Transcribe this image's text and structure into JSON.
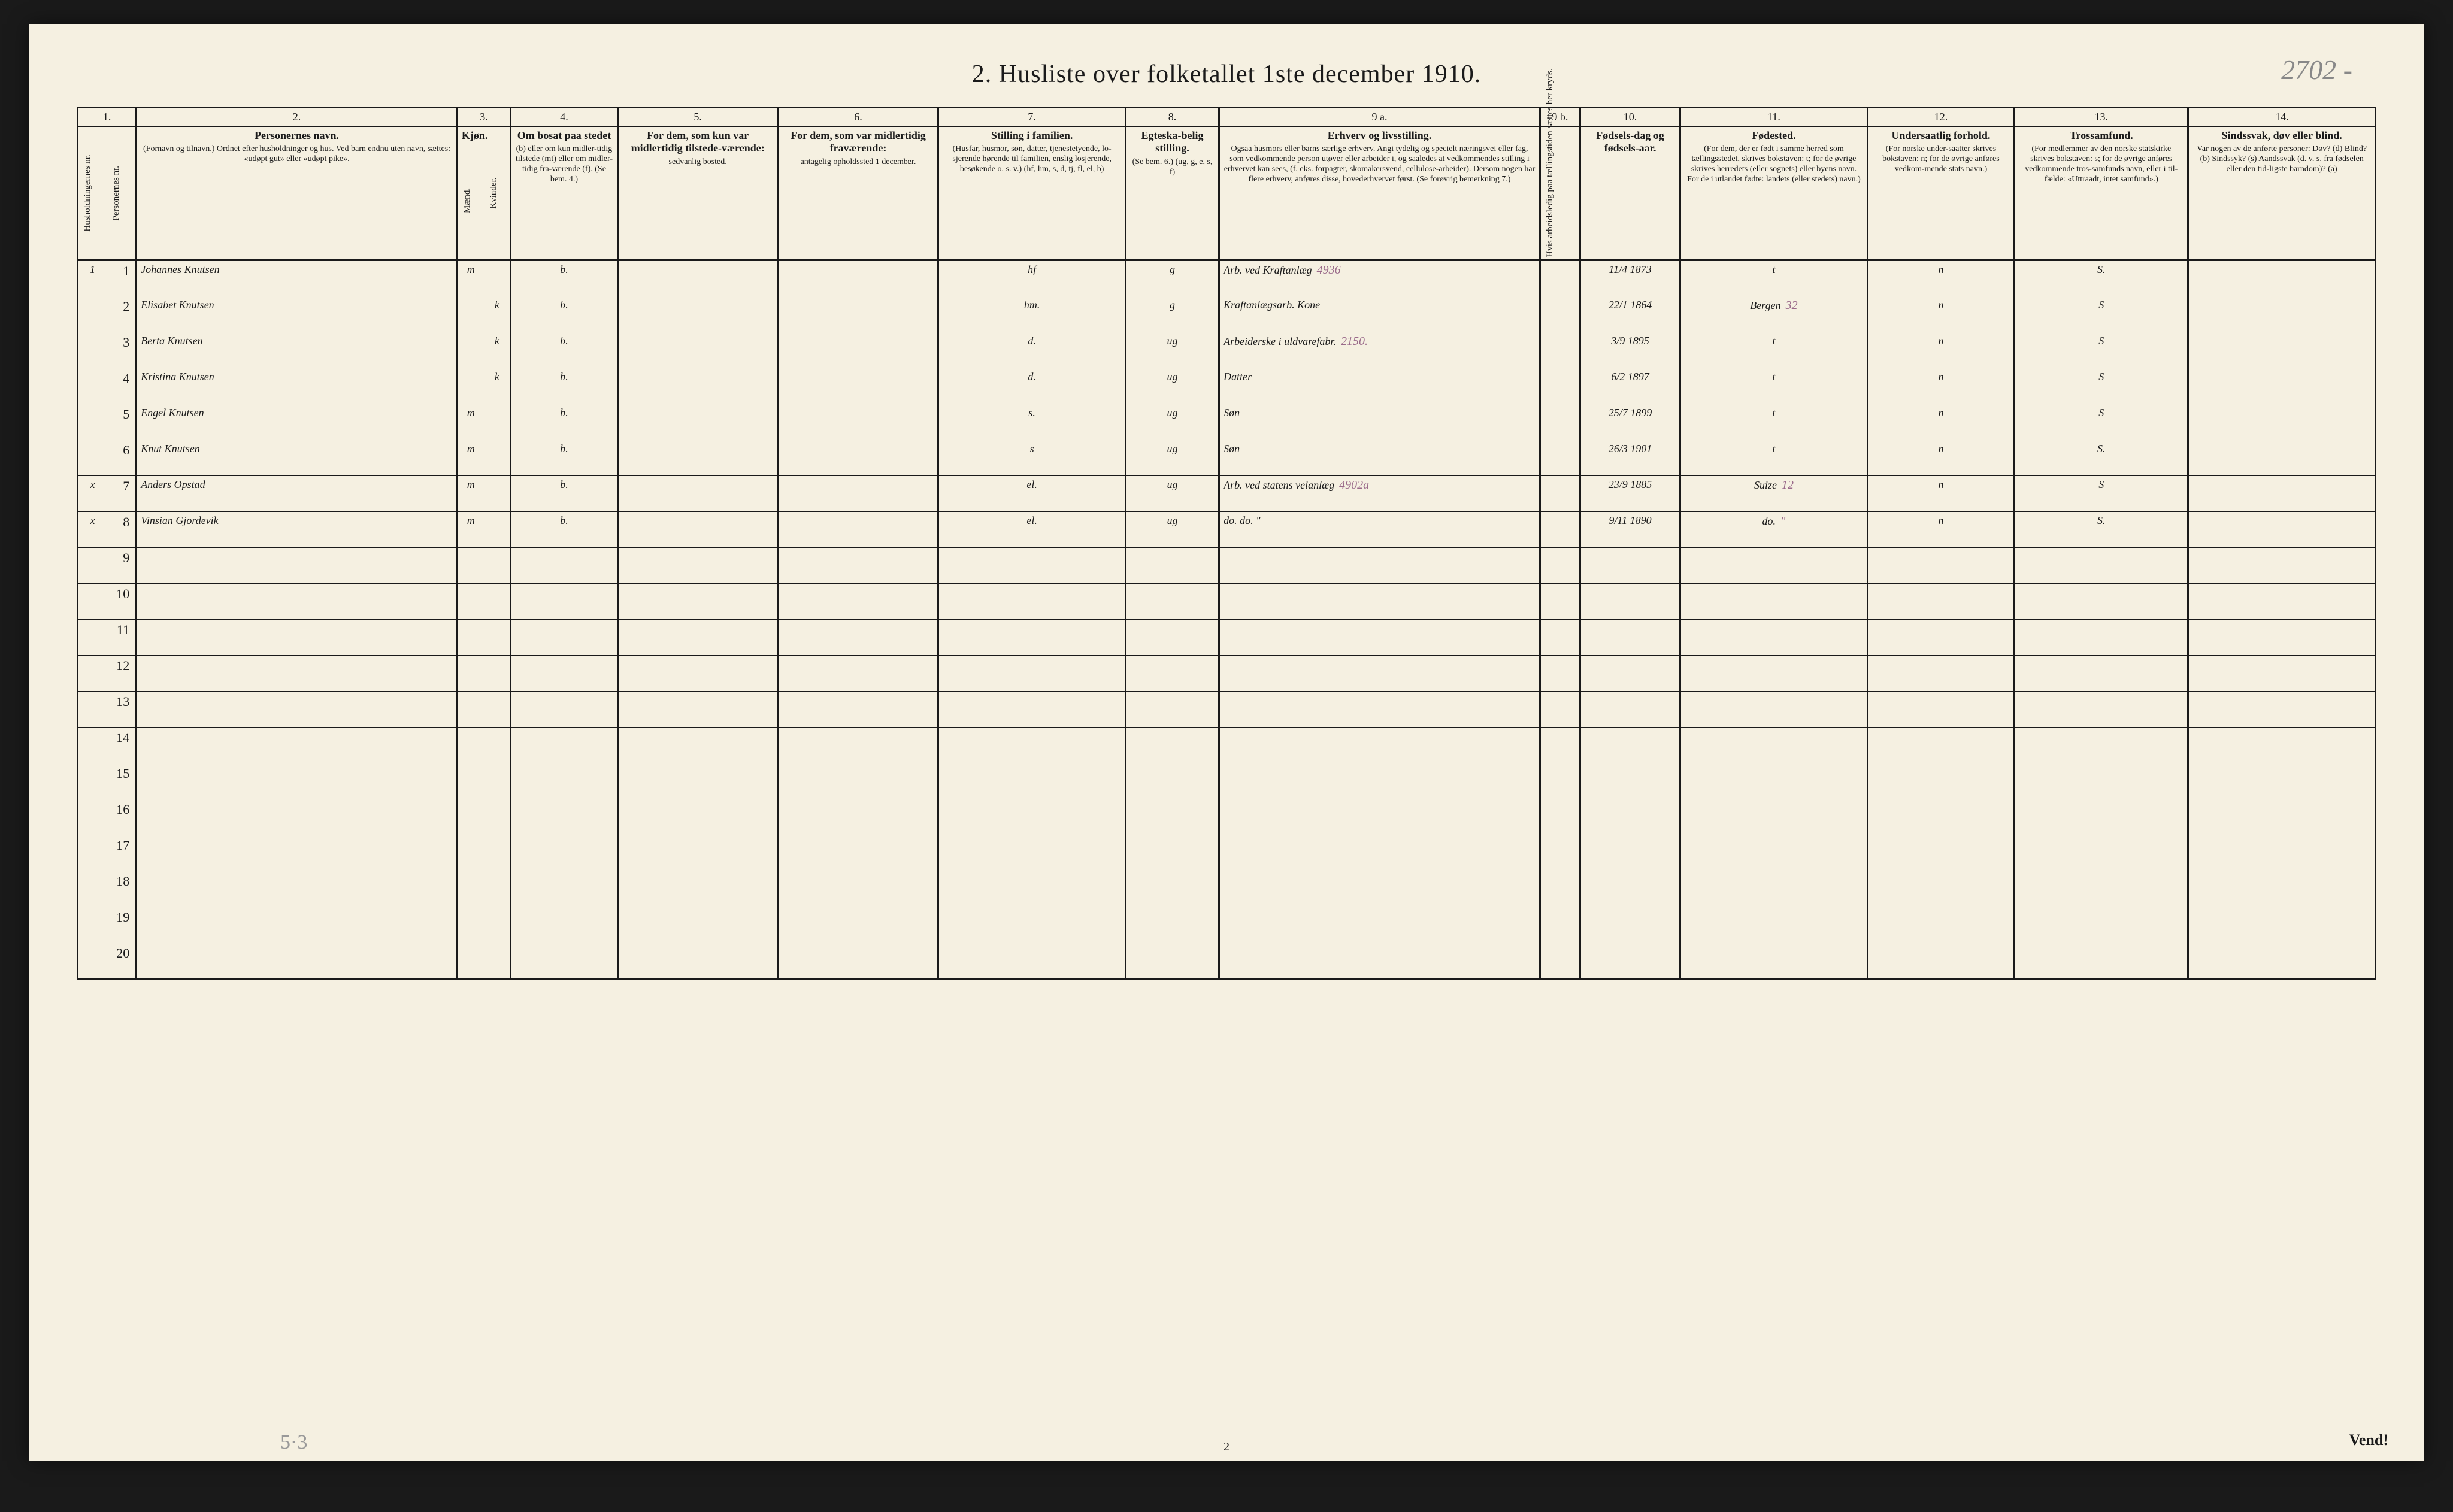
{
  "page_annotation_top_right": "2702 -",
  "title": "2.  Husliste over folketallet 1ste december 1910.",
  "footer_page_num": "2",
  "vend_label": "Vend!",
  "margin_note_bottom": "5·3",
  "colors": {
    "paper": "#f5f0e1",
    "ink": "#1a1a1a",
    "handwriting": "#3a3a4a",
    "pencil": "#888888",
    "red_pencil": "#9a6a8a",
    "background": "#1a1a1a"
  },
  "header_numbers": [
    "1.",
    "2.",
    "3.",
    "4.",
    "5.",
    "6.",
    "7.",
    "8.",
    "9 a.",
    "9 b.",
    "10.",
    "11.",
    "12.",
    "13.",
    "14."
  ],
  "headers": {
    "c1a": "Husholdningernes nr.",
    "c1b": "Personernes nr.",
    "c2_main": "Personernes navn.",
    "c2_sub": "(Fornavn og tilnavn.)\nOrdnet efter husholdninger og hus.\nVed barn endnu uten navn, sættes: «udøpt gut» eller «udøpt pike».",
    "c3_main": "Kjøn.",
    "c3_m": "Mænd.",
    "c3_k": "Kvinder.",
    "c4_main": "Om bosat paa stedet",
    "c4_sub": "(b) eller om kun midler-tidig tilstede (mt) eller om midler-tidig fra-værende (f). (Se bem. 4.)",
    "c5_main": "For dem, som kun var midlertidig tilstede-værende:",
    "c5_sub": "sedvanlig bosted.",
    "c6_main": "For dem, som var midlertidig fraværende:",
    "c6_sub": "antagelig opholdssted 1 december.",
    "c7_main": "Stilling i familien.",
    "c7_sub": "(Husfar, husmor, søn, datter, tjenestetyende, lo-sjerende hørende til familien, enslig losjerende, besøkende o. s. v.)\n(hf, hm, s, d, tj, fl, el, b)",
    "c8_main": "Egteska-belig stilling.",
    "c8_sub": "(Se bem. 6.)\n(ug, g, e, s, f)",
    "c9a_main": "Erhverv og livsstilling.",
    "c9a_sub": "Ogsaa husmors eller barns særlige erhverv. Angi tydelig og specielt næringsvei eller fag, som vedkommende person utøver eller arbeider i, og saaledes at vedkommendes stilling i erhvervet kan sees, (f. eks. forpagter, skomakersvend, cellulose-arbeider). Dersom nogen har flere erhverv, anføres disse, hovederhvervet først.\n(Se forøvrig bemerkning 7.)",
    "c9b": "Hvis arbeidsledig paa tællingstiden sættes her kryds.",
    "c10_main": "Fødsels-dag og fødsels-aar.",
    "c11_main": "Fødested.",
    "c11_sub": "(For dem, der er født i samme herred som tællingsstedet, skrives bokstaven: t; for de øvrige skrives herredets (eller sognets) eller byens navn. For de i utlandet fødte: landets (eller stedets) navn.)",
    "c12_main": "Undersaatlig forhold.",
    "c12_sub": "(For norske under-saatter skrives bokstaven: n; for de øvrige anføres vedkom-mende stats navn.)",
    "c13_main": "Trossamfund.",
    "c13_sub": "(For medlemmer av den norske statskirke skrives bokstaven: s; for de øvrige anføres vedkommende tros-samfunds navn, eller i til-fælde: «Uttraadt, intet samfund».)",
    "c14_main": "Sindssvak, døv eller blind.",
    "c14_sub": "Var nogen av de anførte personer:\nDøv?      (d)\nBlind?    (b)\nSindssyk? (s)\nAandssvak (d. v. s. fra fødselen eller den tid-ligste barndom)? (a)"
  },
  "rows": [
    {
      "hh": "1",
      "pn": "1",
      "name": "Johannes Knutsen",
      "sex_m": "m",
      "sex_k": "",
      "c4": "b.",
      "c5": "",
      "c6": "",
      "c7": "hf",
      "c8": "g",
      "c9a": "Arb. ved Kraftanlæg",
      "c9a_annot": "4936",
      "c9b": "",
      "c10": "11/4 1873",
      "c11": "t",
      "c12": "n",
      "c13": "S.",
      "c14": ""
    },
    {
      "hh": "",
      "pn": "2",
      "name": "Elisabet Knutsen",
      "sex_m": "",
      "sex_k": "k",
      "c4": "b.",
      "c5": "",
      "c6": "",
      "c7": "hm.",
      "c8": "g",
      "c9a": "Kraftanlægsarb. Kone",
      "c9a_annot": "",
      "c9b": "",
      "c10": "22/1 1864",
      "c11": "Bergen",
      "c11_annot": "32",
      "c12": "n",
      "c13": "S",
      "c14": ""
    },
    {
      "hh": "",
      "pn": "3",
      "name": "Berta Knutsen",
      "sex_m": "",
      "sex_k": "k",
      "c4": "b.",
      "c5": "",
      "c6": "",
      "c7": "d.",
      "c8": "ug",
      "c9a": "Arbeiderske i uldvarefabr.",
      "c9a_annot": "2150.",
      "c9b": "",
      "c10": "3/9 1895",
      "c11": "t",
      "c12": "n",
      "c13": "S",
      "c14": ""
    },
    {
      "hh": "",
      "pn": "4",
      "name": "Kristina Knutsen",
      "sex_m": "",
      "sex_k": "k",
      "c4": "b.",
      "c5": "",
      "c6": "",
      "c7": "d.",
      "c8": "ug",
      "c9a": "Datter",
      "c9a_annot": "",
      "c9b": "",
      "c10": "6/2 1897",
      "c11": "t",
      "c12": "n",
      "c13": "S",
      "c14": ""
    },
    {
      "hh": "",
      "pn": "5",
      "name": "Engel Knutsen",
      "sex_m": "m",
      "sex_k": "",
      "c4": "b.",
      "c5": "",
      "c6": "",
      "c7": "s.",
      "c8": "ug",
      "c9a": "Søn",
      "c9a_annot": "",
      "c9b": "",
      "c10": "25/7 1899",
      "c11": "t",
      "c12": "n",
      "c13": "S",
      "c14": ""
    },
    {
      "hh": "",
      "pn": "6",
      "name": "Knut Knutsen",
      "sex_m": "m",
      "sex_k": "",
      "c4": "b.",
      "c5": "",
      "c6": "",
      "c7": "s",
      "c8": "ug",
      "c9a": "Søn",
      "c9a_annot": "",
      "c9b": "",
      "c10": "26/3 1901",
      "c11": "t",
      "c12": "n",
      "c13": "S.",
      "c14": ""
    },
    {
      "hh": "x",
      "pn": "7",
      "name": "Anders Opstad",
      "sex_m": "m",
      "sex_k": "",
      "c4": "b.",
      "c5": "",
      "c6": "",
      "c7": "el.",
      "c8": "ug",
      "c9a": "Arb. ved statens veianlæg",
      "c9a_annot": "4902a",
      "c9b": "",
      "c10": "23/9 1885",
      "c11": "Suize",
      "c11_annot": "12",
      "c12": "n",
      "c13": "S",
      "c14": ""
    },
    {
      "hh": "x",
      "pn": "8",
      "name": "Vinsian Gjordevik",
      "sex_m": "m",
      "sex_k": "",
      "c4": "b.",
      "c5": "",
      "c6": "",
      "c7": "el.",
      "c8": "ug",
      "c9a": "do.   do.   \"",
      "c9a_annot": "",
      "c9b": "",
      "c10": "9/11 1890",
      "c11": "do.",
      "c11_annot": "\"",
      "c12": "n",
      "c13": "S.",
      "c14": ""
    }
  ],
  "blank_rows": [
    9,
    10,
    11,
    12,
    13,
    14,
    15,
    16,
    17,
    18,
    19,
    20
  ]
}
